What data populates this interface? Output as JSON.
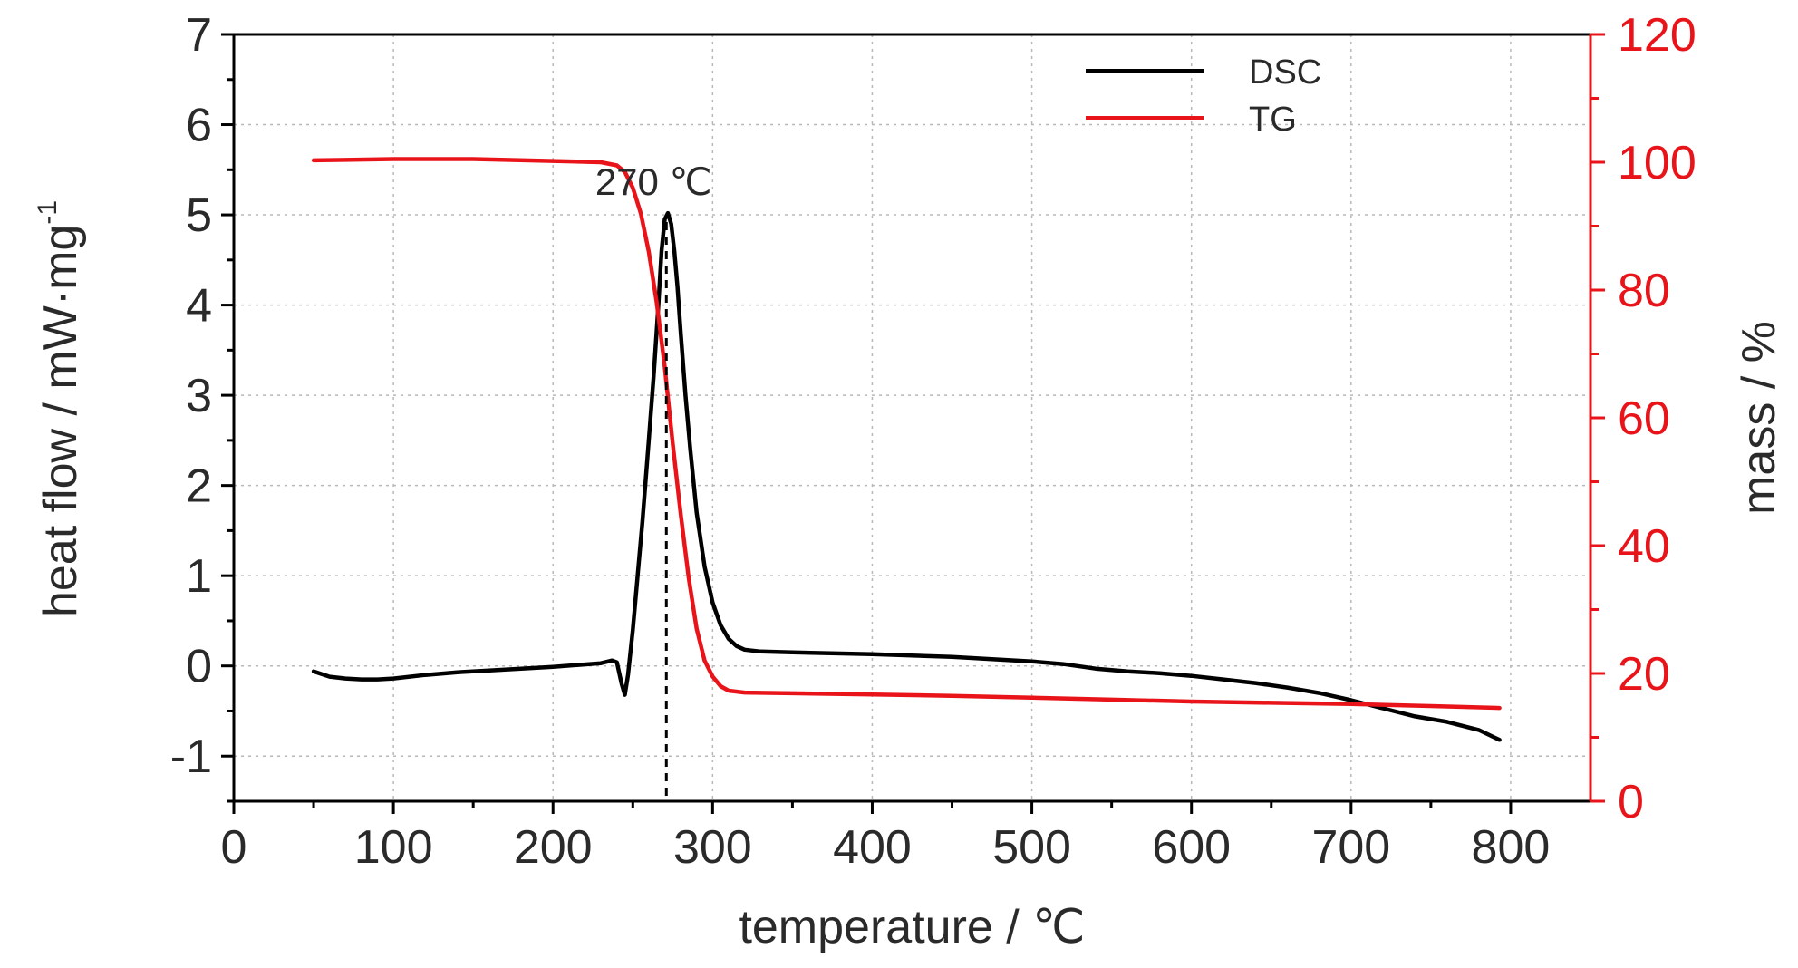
{
  "chart_data": {
    "type": "line",
    "title": "",
    "xlabel": "temperature / ℃",
    "ylabel_left": "heat flow / mW·mg",
    "ylabel_left_sup": "-1",
    "ylabel_right": "mass / %",
    "xlim": [
      0,
      850
    ],
    "ylim_left": [
      -1.5,
      7
    ],
    "ylim_right": [
      0,
      120
    ],
    "x_ticks": [
      "0",
      "100",
      "200",
      "300",
      "400",
      "500",
      "600",
      "700",
      "800"
    ],
    "y_left_ticks": [
      "-1",
      "0",
      "1",
      "2",
      "3",
      "4",
      "5",
      "6",
      "7"
    ],
    "y_right_ticks": [
      "0",
      "20",
      "40",
      "60",
      "80",
      "100",
      "120"
    ],
    "grid": true,
    "legend_position": "top-right",
    "colors": {
      "DSC": "#000000",
      "TG": "#e8141a",
      "right_axis": "#e8141a",
      "grid": "#b8b8b8",
      "text": "#2a2a2a"
    },
    "annotation": {
      "text": "270 ℃",
      "x": 271,
      "y": 5.0
    },
    "series": [
      {
        "name": "DSC",
        "axis": "left",
        "x": [
          50,
          60,
          70,
          80,
          90,
          100,
          120,
          140,
          160,
          180,
          200,
          215,
          230,
          237,
          240,
          243,
          245,
          247,
          250,
          253,
          256,
          260,
          263,
          266,
          268,
          270,
          272,
          274,
          276,
          278,
          280,
          283,
          286,
          290,
          295,
          300,
          305,
          310,
          315,
          320,
          330,
          350,
          400,
          450,
          500,
          520,
          540,
          560,
          580,
          600,
          620,
          640,
          660,
          680,
          700,
          720,
          740,
          760,
          780,
          793
        ],
        "values": [
          -0.06,
          -0.12,
          -0.14,
          -0.15,
          -0.15,
          -0.14,
          -0.1,
          -0.07,
          -0.05,
          -0.03,
          -0.01,
          0.01,
          0.03,
          0.06,
          0.04,
          -0.2,
          -0.32,
          -0.1,
          0.4,
          1.0,
          1.6,
          2.5,
          3.2,
          4.0,
          4.6,
          4.95,
          5.02,
          4.9,
          4.6,
          4.2,
          3.7,
          3.0,
          2.4,
          1.7,
          1.1,
          0.7,
          0.45,
          0.3,
          0.22,
          0.18,
          0.16,
          0.15,
          0.13,
          0.1,
          0.05,
          0.02,
          -0.03,
          -0.06,
          -0.08,
          -0.11,
          -0.15,
          -0.19,
          -0.24,
          -0.3,
          -0.38,
          -0.47,
          -0.56,
          -0.62,
          -0.71,
          -0.82
        ]
      },
      {
        "name": "TG",
        "axis": "right",
        "x": [
          50,
          100,
          150,
          200,
          230,
          240,
          245,
          250,
          255,
          260,
          265,
          270,
          275,
          280,
          285,
          290,
          295,
          300,
          305,
          310,
          320,
          350,
          400,
          450,
          500,
          550,
          600,
          650,
          700,
          750,
          793
        ],
        "values": [
          100.3,
          100.5,
          100.5,
          100.2,
          100.0,
          99.5,
          98.5,
          96.0,
          92.0,
          86.0,
          78.0,
          68.0,
          56.0,
          45.0,
          35.0,
          27.0,
          22.0,
          19.5,
          18.0,
          17.3,
          17.0,
          16.9,
          16.7,
          16.5,
          16.2,
          15.9,
          15.6,
          15.4,
          15.2,
          14.9,
          14.6
        ]
      }
    ]
  }
}
